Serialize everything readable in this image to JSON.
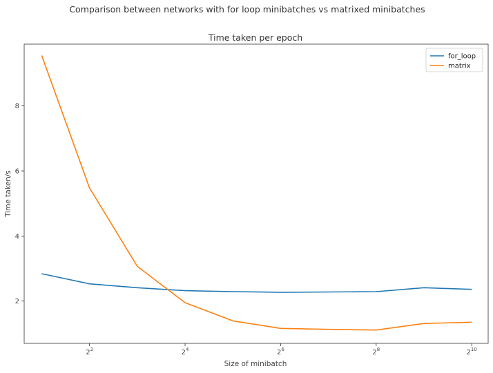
{
  "suptitle": "Comparison between networks with for loop minibatches vs matrixed minibatches",
  "chart_data": {
    "type": "line",
    "title": "Time taken per epoch",
    "xlabel": "Size of minibatch",
    "ylabel": "Time taken/s",
    "xscale": "log2",
    "x": [
      2,
      4,
      8,
      16,
      32,
      64,
      128,
      256,
      512,
      1024
    ],
    "xlim": [
      1.55,
      1300
    ],
    "ylim": [
      0.7,
      9.9
    ],
    "xticks": [
      {
        "value": 4,
        "base": "2",
        "exp": "2"
      },
      {
        "value": 16,
        "base": "2",
        "exp": "4"
      },
      {
        "value": 64,
        "base": "2",
        "exp": "6"
      },
      {
        "value": 256,
        "base": "2",
        "exp": "8"
      },
      {
        "value": 1024,
        "base": "2",
        "exp": "10"
      }
    ],
    "yticks": [
      {
        "value": 2,
        "label": "2"
      },
      {
        "value": 4,
        "label": "4"
      },
      {
        "value": 6,
        "label": "6"
      },
      {
        "value": 8,
        "label": "8"
      }
    ],
    "series": [
      {
        "name": "for_loop",
        "color": "#1f77b4",
        "values": [
          2.84,
          2.53,
          2.41,
          2.32,
          2.29,
          2.27,
          2.28,
          2.29,
          2.41,
          2.36
        ]
      },
      {
        "name": "matrix",
        "color": "#ff7f0e",
        "values": [
          9.55,
          5.48,
          3.07,
          1.95,
          1.39,
          1.16,
          1.13,
          1.11,
          1.31,
          1.35
        ]
      }
    ],
    "grid": false,
    "legend": "top-right"
  }
}
